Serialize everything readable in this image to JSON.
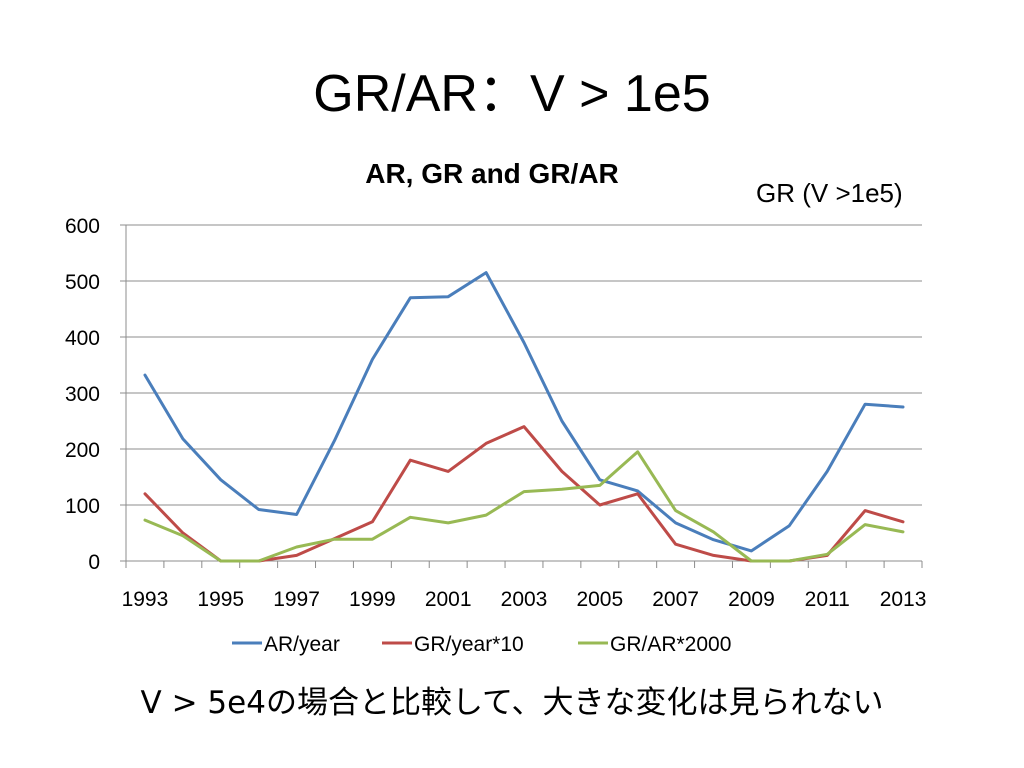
{
  "slide": {
    "title": "GR/AR：V > 1e5",
    "side_note": "GR (V >1e5)",
    "footnote": "V > 5e4の場合と比較して、大きな変化は見られない"
  },
  "chart_data": {
    "type": "line",
    "title": "AR, GR and GR/AR",
    "xlabel": "",
    "ylabel": "",
    "x": [
      1993,
      1994,
      1995,
      1996,
      1997,
      1998,
      1999,
      2000,
      2001,
      2002,
      2003,
      2004,
      2005,
      2006,
      2007,
      2008,
      2009,
      2010,
      2011,
      2012,
      2013
    ],
    "x_tick_labels": [
      "1993",
      "1995",
      "1997",
      "1999",
      "2001",
      "2003",
      "2005",
      "2007",
      "2009",
      "2011",
      "2013"
    ],
    "y_tick_labels": [
      "0",
      "100",
      "200",
      "300",
      "400",
      "500",
      "600"
    ],
    "ylim": [
      0,
      600
    ],
    "grid": "horizontal",
    "legend_position": "bottom",
    "series": [
      {
        "name": "AR/year",
        "color": "#4a7ebb",
        "values": [
          332,
          218,
          145,
          92,
          83,
          215,
          360,
          470,
          472,
          515,
          390,
          250,
          145,
          125,
          68,
          38,
          18,
          63,
          160,
          280,
          275
        ]
      },
      {
        "name": "GR/year*10",
        "color": "#be4b48",
        "values": [
          120,
          50,
          0,
          0,
          10,
          40,
          70,
          180,
          160,
          210,
          240,
          160,
          100,
          120,
          30,
          10,
          0,
          0,
          10,
          90,
          70
        ]
      },
      {
        "name": "GR/AR*2000",
        "color": "#98b954",
        "values": [
          73,
          45,
          0,
          0,
          25,
          39,
          39,
          78,
          68,
          82,
          124,
          128,
          135,
          195,
          90,
          52,
          0,
          0,
          12,
          65,
          52
        ]
      }
    ]
  }
}
